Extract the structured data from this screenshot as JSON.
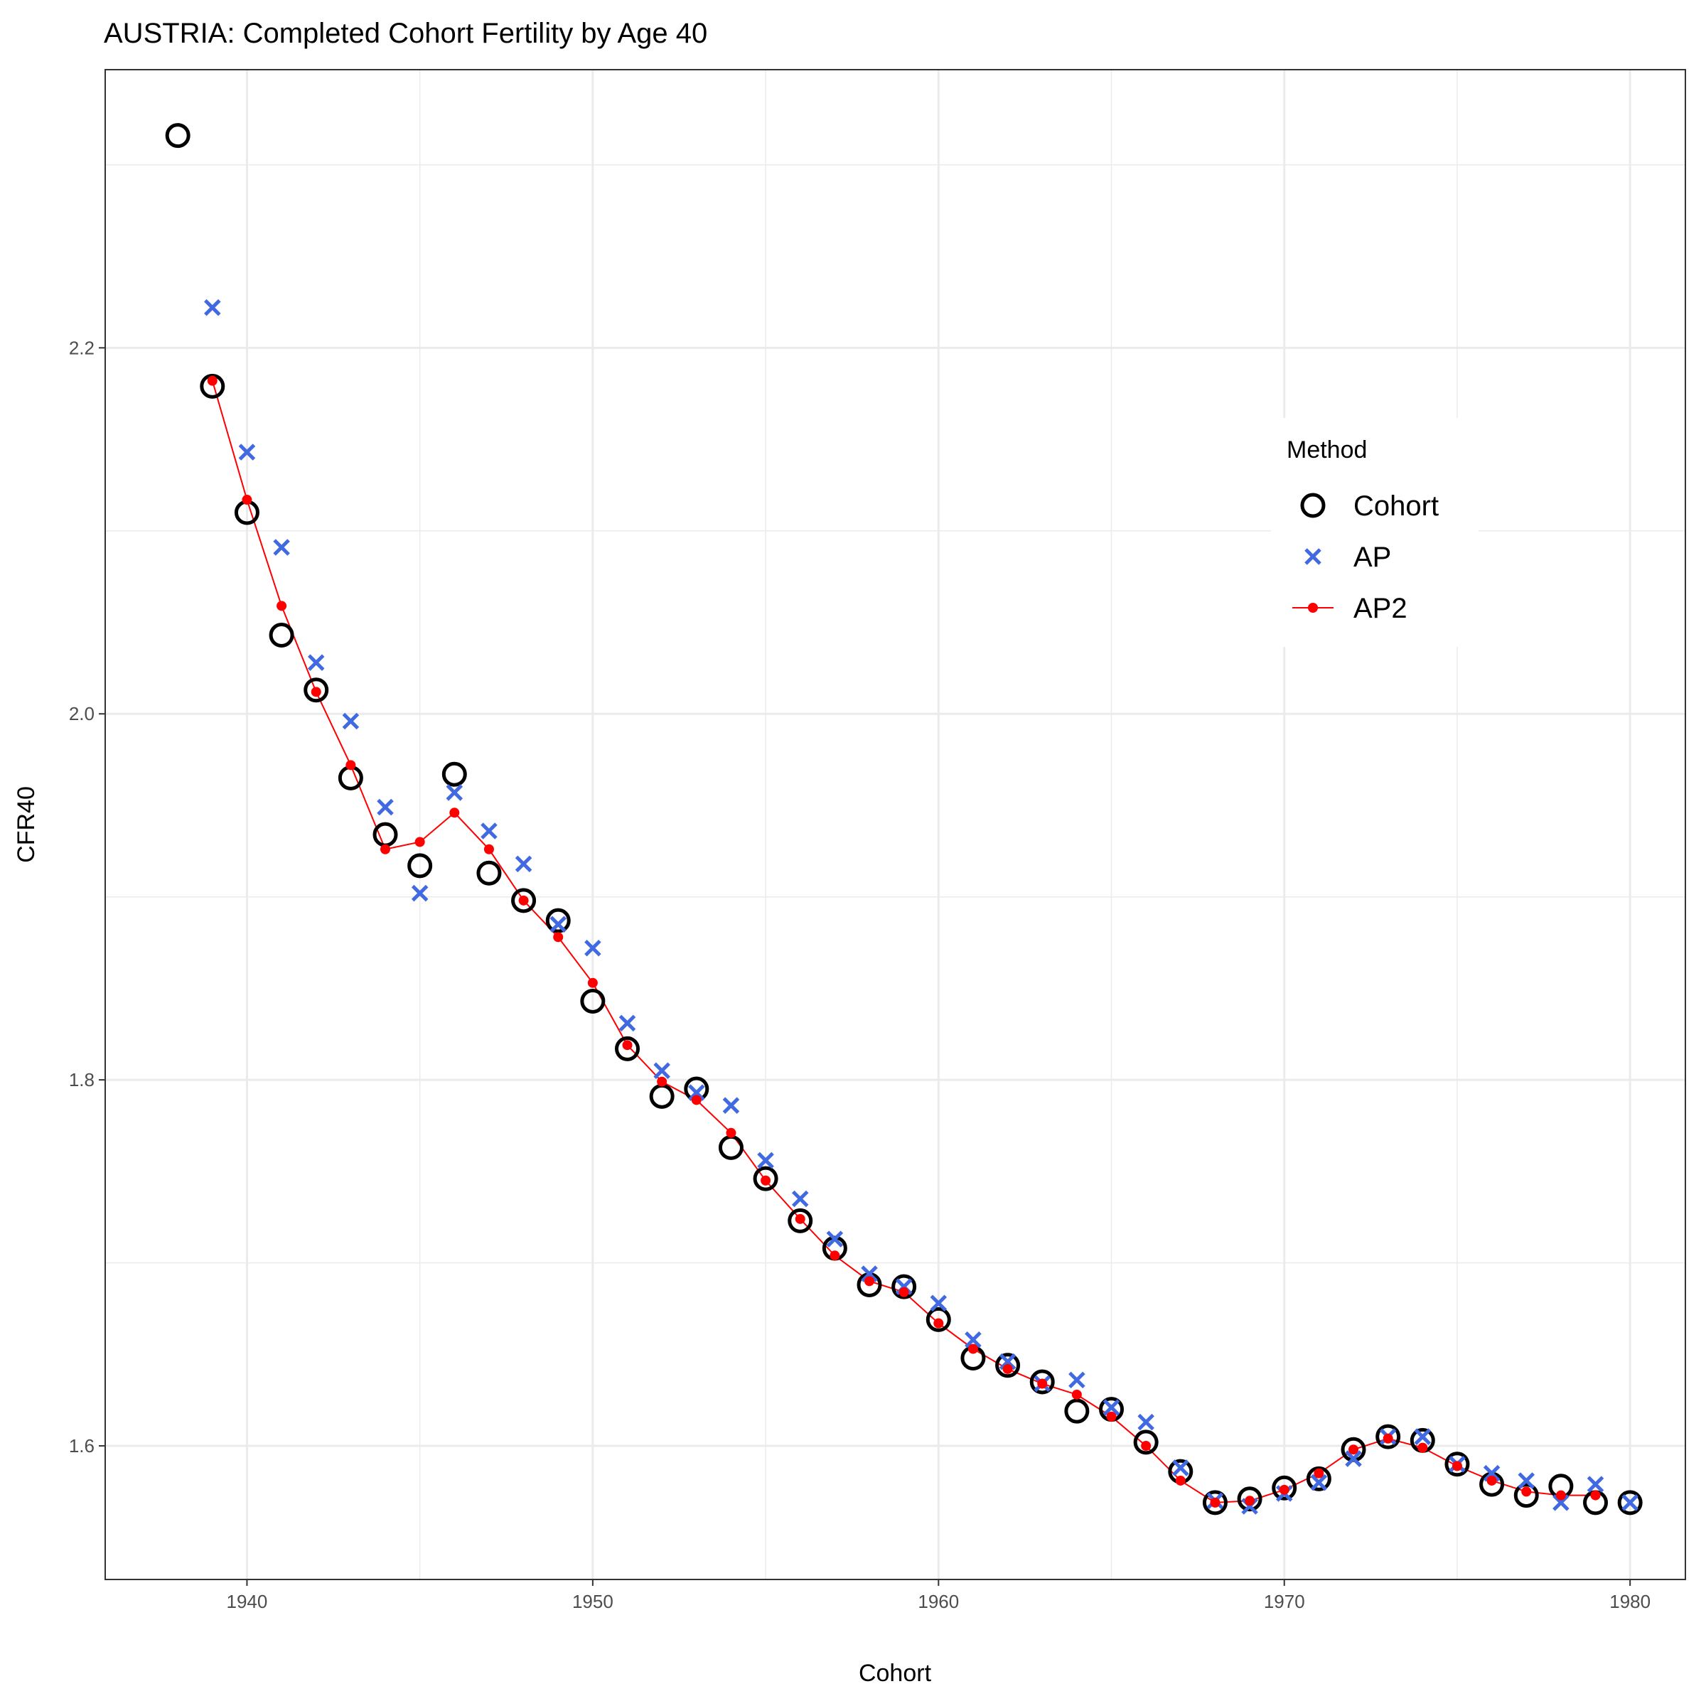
{
  "chart_data": {
    "type": "scatter",
    "title": "AUSTRIA: Completed Cohort Fertility by Age 40",
    "xlabel": "Cohort",
    "ylabel": "CFR40",
    "xlim": [
      1935.9,
      1981.6
    ],
    "ylim": [
      1.527,
      2.352
    ],
    "x_ticks": [
      1940,
      1950,
      1960,
      1970,
      1980
    ],
    "y_ticks": [
      1.6,
      1.8,
      2.0,
      2.2
    ],
    "grid": true,
    "legend": {
      "title": "Method",
      "position": "right-inside"
    },
    "series": [
      {
        "name": "Cohort",
        "marker": "open-circle",
        "color": "#000000",
        "x": [
          1938,
          1939,
          1940,
          1941,
          1942,
          1943,
          1944,
          1945,
          1946,
          1947,
          1948,
          1949,
          1950,
          1951,
          1952,
          1953,
          1954,
          1955,
          1956,
          1957,
          1958,
          1959,
          1960,
          1961,
          1962,
          1963,
          1964,
          1965,
          1966,
          1967,
          1968,
          1969,
          1970,
          1971,
          1972,
          1973,
          1974,
          1975,
          1976,
          1977,
          1978,
          1979,
          1980
        ],
        "values": [
          2.316,
          2.179,
          2.11,
          2.043,
          2.013,
          1.965,
          1.934,
          1.917,
          1.967,
          1.913,
          1.898,
          1.887,
          1.843,
          1.817,
          1.791,
          1.795,
          1.763,
          1.746,
          1.723,
          1.708,
          1.688,
          1.687,
          1.669,
          1.648,
          1.644,
          1.635,
          1.619,
          1.62,
          1.602,
          1.586,
          1.569,
          1.571,
          1.577,
          1.582,
          1.598,
          1.605,
          1.603,
          1.59,
          1.579,
          1.573,
          1.578,
          1.569,
          1.569
        ]
      },
      {
        "name": "AP",
        "marker": "cross",
        "color": "#4169E1",
        "x": [
          1939,
          1940,
          1941,
          1942,
          1943,
          1944,
          1945,
          1946,
          1947,
          1948,
          1949,
          1950,
          1951,
          1952,
          1953,
          1954,
          1955,
          1956,
          1957,
          1958,
          1959,
          1960,
          1961,
          1962,
          1963,
          1964,
          1965,
          1966,
          1967,
          1968,
          1969,
          1970,
          1971,
          1972,
          1973,
          1974,
          1975,
          1976,
          1977,
          1978,
          1979,
          1980
        ],
        "values": [
          2.222,
          2.143,
          2.091,
          2.028,
          1.996,
          1.949,
          1.902,
          1.957,
          1.936,
          1.918,
          1.885,
          1.872,
          1.831,
          1.805,
          1.793,
          1.786,
          1.756,
          1.735,
          1.713,
          1.694,
          1.687,
          1.678,
          1.658,
          1.646,
          1.634,
          1.636,
          1.621,
          1.613,
          1.588,
          1.57,
          1.567,
          1.574,
          1.58,
          1.593,
          1.605,
          1.605,
          1.59,
          1.585,
          1.581,
          1.569,
          1.579,
          1.569
        ]
      },
      {
        "name": "AP2",
        "marker": "point-line",
        "color": "#FF0000",
        "x": [
          1939,
          1940,
          1941,
          1942,
          1943,
          1944,
          1945,
          1946,
          1947,
          1948,
          1949,
          1950,
          1951,
          1952,
          1953,
          1954,
          1955,
          1956,
          1957,
          1958,
          1959,
          1960,
          1961,
          1962,
          1963,
          1964,
          1965,
          1966,
          1967,
          1968,
          1969,
          1970,
          1971,
          1972,
          1973,
          1974,
          1975,
          1976,
          1977,
          1978,
          1979
        ],
        "values": [
          2.182,
          2.117,
          2.059,
          2.012,
          1.972,
          1.926,
          1.93,
          1.946,
          1.926,
          1.898,
          1.878,
          1.853,
          1.819,
          1.799,
          1.789,
          1.771,
          1.745,
          1.724,
          1.704,
          1.69,
          1.684,
          1.667,
          1.653,
          1.642,
          1.634,
          1.628,
          1.616,
          1.6,
          1.581,
          1.569,
          1.57,
          1.576,
          1.585,
          1.598,
          1.604,
          1.599,
          1.589,
          1.581,
          1.575,
          1.573,
          1.573
        ]
      }
    ]
  }
}
